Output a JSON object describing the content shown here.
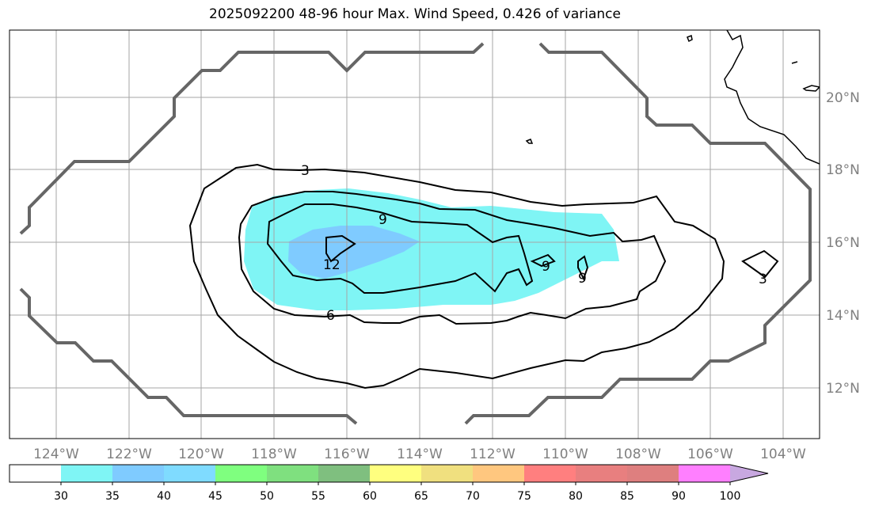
{
  "title": "2025092200 48-96 hour Max. Wind Speed, 0.426 of variance",
  "map": {
    "lon_labels": [
      "124°W",
      "122°W",
      "120°W",
      "118°W",
      "116°W",
      "114°W",
      "112°W",
      "110°W",
      "108°W",
      "106°W",
      "104°W"
    ],
    "lat_labels": [
      "20°N",
      "18°N",
      "16°N",
      "14°N",
      "12°N"
    ],
    "gridlines": true,
    "contour_labels": [
      "3",
      "9",
      "12",
      "9",
      "9",
      "6",
      "3"
    ]
  },
  "colorbar": {
    "ticks": [
      "30",
      "35",
      "40",
      "45",
      "50",
      "55",
      "60",
      "65",
      "70",
      "75",
      "80",
      "85",
      "90",
      "100"
    ],
    "colors": [
      "#ffffff",
      "#7ff5f5",
      "#7fcbff",
      "#7fdbff",
      "#7fff7f",
      "#7fe07f",
      "#7fbf7f",
      "#ffff7f",
      "#f0e07f",
      "#ffc77f",
      "#ff7f7f",
      "#e87f7f",
      "#de7f7f",
      "#ff7fff",
      "#c8a8e0"
    ],
    "extend": "max"
  }
}
